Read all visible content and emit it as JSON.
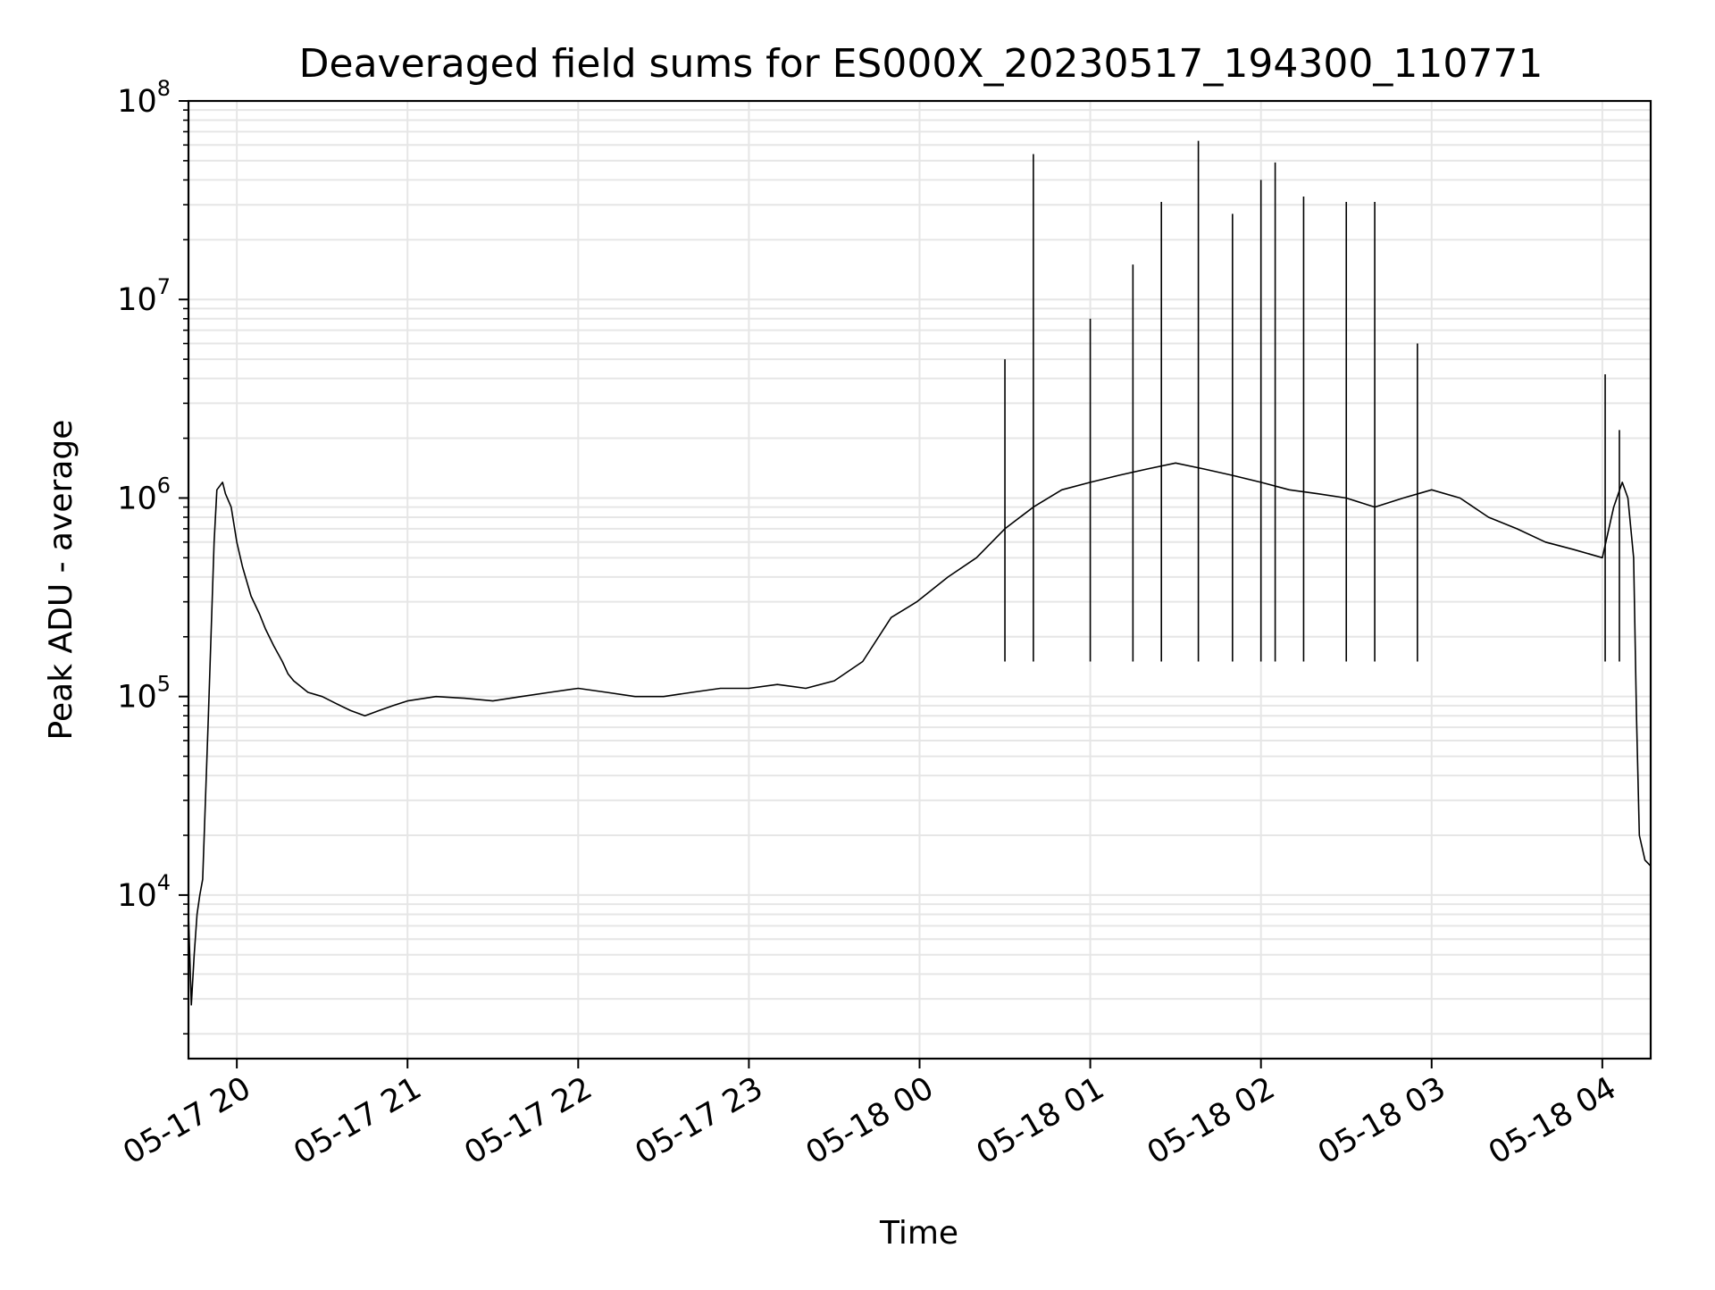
{
  "chart_data": {
    "type": "line",
    "title": "Deaveraged field sums for ES000X_20230517_194300_110771",
    "xlabel": "Time",
    "ylabel": "Peak ADU - average",
    "yscale": "log",
    "ylim": [
      1500,
      100000000
    ],
    "xlim": [
      "2023-05-17 19:43",
      "2023-05-18 04:17"
    ],
    "grid": true,
    "line_color": "#000000",
    "grid_color": "#e6e6e6",
    "x_tick_labels": [
      "05-17 20",
      "05-17 21",
      "05-17 22",
      "05-17 23",
      "05-18 00",
      "05-18 01",
      "05-18 02",
      "05-18 03",
      "05-18 04"
    ],
    "x_ticks": [
      "2023-05-17 20:00",
      "2023-05-17 21:00",
      "2023-05-17 22:00",
      "2023-05-17 23:00",
      "2023-05-18 00:00",
      "2023-05-18 01:00",
      "2023-05-18 02:00",
      "2023-05-18 03:00",
      "2023-05-18 04:00"
    ],
    "y_ticks": [
      {
        "value": 10000,
        "base": "10",
        "exp": "4"
      },
      {
        "value": 100000,
        "base": "10",
        "exp": "5"
      },
      {
        "value": 1000000,
        "base": "10",
        "exp": "6"
      },
      {
        "value": 10000000,
        "base": "10",
        "exp": "7"
      },
      {
        "value": 100000000,
        "base": "10",
        "exp": "8"
      }
    ],
    "series": [
      {
        "x": [
          "2023-05-17 19:43",
          "2023-05-17 19:44",
          "2023-05-17 19:45",
          "2023-05-17 19:46",
          "2023-05-17 19:47",
          "2023-05-17 19:48",
          "2023-05-17 19:50",
          "2023-05-17 19:52",
          "2023-05-17 19:53",
          "2023-05-17 19:55",
          "2023-05-17 19:56",
          "2023-05-17 19:58",
          "2023-05-17 20:00",
          "2023-05-17 20:02",
          "2023-05-17 20:05",
          "2023-05-17 20:08",
          "2023-05-17 20:10",
          "2023-05-17 20:13",
          "2023-05-17 20:16",
          "2023-05-17 20:18",
          "2023-05-17 20:20",
          "2023-05-17 20:25",
          "2023-05-17 20:30",
          "2023-05-17 20:35",
          "2023-05-17 20:40",
          "2023-05-17 20:45",
          "2023-05-17 20:50",
          "2023-05-17 20:55",
          "2023-05-17 21:00",
          "2023-05-17 21:10",
          "2023-05-17 21:20",
          "2023-05-17 21:30",
          "2023-05-17 21:40",
          "2023-05-17 21:50",
          "2023-05-17 22:00",
          "2023-05-17 22:10",
          "2023-05-17 22:20",
          "2023-05-17 22:30",
          "2023-05-17 22:40",
          "2023-05-17 22:50",
          "2023-05-17 23:00",
          "2023-05-17 23:10",
          "2023-05-17 23:20",
          "2023-05-17 23:30",
          "2023-05-17 23:40",
          "2023-05-17 23:50",
          "2023-05-17 23:59",
          "2023-05-18 00:10",
          "2023-05-18 00:20",
          "2023-05-18 00:30",
          "2023-05-18 00:40",
          "2023-05-18 00:50",
          "2023-05-18 01:00",
          "2023-05-18 01:10",
          "2023-05-18 01:20",
          "2023-05-18 01:30",
          "2023-05-18 01:40",
          "2023-05-18 01:50",
          "2023-05-18 02:00",
          "2023-05-18 02:10",
          "2023-05-18 02:20",
          "2023-05-18 02:30",
          "2023-05-18 02:40",
          "2023-05-18 02:50",
          "2023-05-18 03:00",
          "2023-05-18 03:10",
          "2023-05-18 03:20",
          "2023-05-18 03:30",
          "2023-05-18 03:40",
          "2023-05-18 03:50",
          "2023-05-18 04:00",
          "2023-05-18 04:04",
          "2023-05-18 04:07",
          "2023-05-18 04:09",
          "2023-05-18 04:11",
          "2023-05-18 04:12",
          "2023-05-18 04:13",
          "2023-05-18 04:15",
          "2023-05-18 04:17"
        ],
        "y": [
          8000,
          2800,
          5000,
          8000,
          10000,
          12000,
          80000,
          600000,
          1100000,
          1200000,
          1050000,
          900000,
          600000,
          450000,
          320000,
          260000,
          220000,
          180000,
          150000,
          130000,
          120000,
          105000,
          100000,
          92000,
          85000,
          80000,
          85000,
          90000,
          95000,
          100000,
          98000,
          95000,
          100000,
          105000,
          110000,
          105000,
          100000,
          100000,
          105000,
          110000,
          110000,
          115000,
          110000,
          120000,
          150000,
          250000,
          300000,
          400000,
          500000,
          700000,
          900000,
          1100000,
          1200000,
          1300000,
          1400000,
          1500000,
          1400000,
          1300000,
          1200000,
          1100000,
          1050000,
          1000000,
          900000,
          1000000,
          1100000,
          1000000,
          800000,
          700000,
          600000,
          550000,
          500000,
          900000,
          1200000,
          1000000,
          500000,
          80000,
          20000,
          15000,
          14000
        ]
      }
    ],
    "spikes": [
      {
        "x": "2023-05-18 00:30",
        "y": 5000000
      },
      {
        "x": "2023-05-18 00:40",
        "y": 54000000
      },
      {
        "x": "2023-05-18 01:00",
        "y": 8000000
      },
      {
        "x": "2023-05-18 01:15",
        "y": 15000000
      },
      {
        "x": "2023-05-18 01:25",
        "y": 31000000
      },
      {
        "x": "2023-05-18 01:38",
        "y": 63000000
      },
      {
        "x": "2023-05-18 01:50",
        "y": 27000000
      },
      {
        "x": "2023-05-18 02:00",
        "y": 40000000
      },
      {
        "x": "2023-05-18 02:05",
        "y": 49000000
      },
      {
        "x": "2023-05-18 02:15",
        "y": 33000000
      },
      {
        "x": "2023-05-18 02:30",
        "y": 31000000
      },
      {
        "x": "2023-05-18 02:40",
        "y": 31000000
      },
      {
        "x": "2023-05-18 02:55",
        "y": 6000000
      },
      {
        "x": "2023-05-18 04:01",
        "y": 4200000
      },
      {
        "x": "2023-05-18 04:06",
        "y": 2200000
      }
    ]
  }
}
